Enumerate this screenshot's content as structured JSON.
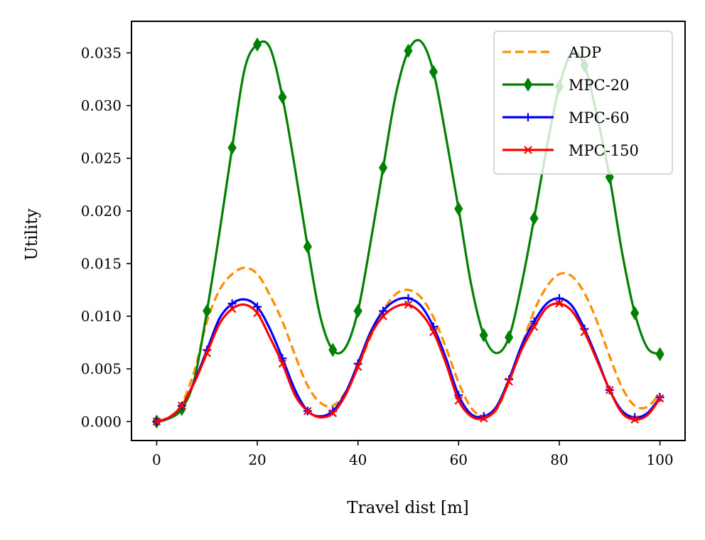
{
  "chart_data": {
    "type": "line",
    "title": "",
    "xlabel": "Travel dist [m]",
    "ylabel": "Utility",
    "xlim": [
      -5,
      105
    ],
    "ylim": [
      -0.0018,
      0.038
    ],
    "xticks": [
      0,
      20,
      40,
      60,
      80,
      100
    ],
    "xtick_labels": [
      "0",
      "20",
      "40",
      "60",
      "80",
      "100"
    ],
    "yticks": [
      0.0,
      0.005,
      0.01,
      0.015,
      0.02,
      0.025,
      0.03,
      0.035
    ],
    "ytick_labels": [
      "0.000",
      "0.005",
      "0.010",
      "0.015",
      "0.020",
      "0.025",
      "0.030",
      "0.035"
    ],
    "grid": false,
    "legend_position": "top-right",
    "series": [
      {
        "name": "ADP",
        "color": "#ff8c00",
        "style": "dashed",
        "marker": "none",
        "x": [
          0,
          2.5,
          5,
          7.5,
          10,
          12.5,
          15,
          17.5,
          20,
          22.5,
          25,
          27.5,
          30,
          32.5,
          35,
          37.5,
          40,
          42.5,
          45,
          47.5,
          50,
          52.5,
          55,
          57.5,
          60,
          62.5,
          65,
          67.5,
          70,
          72.5,
          75,
          77.5,
          80,
          82.5,
          85,
          87.5,
          90,
          92.5,
          95,
          97.5,
          100
        ],
        "y": [
          0.0,
          0.0003,
          0.0017,
          0.0048,
          0.0095,
          0.0125,
          0.014,
          0.0146,
          0.014,
          0.012,
          0.0095,
          0.0063,
          0.0034,
          0.0018,
          0.0015,
          0.0028,
          0.0052,
          0.008,
          0.0105,
          0.0121,
          0.0125,
          0.0118,
          0.0099,
          0.007,
          0.0037,
          0.0013,
          0.0005,
          0.0011,
          0.0038,
          0.0072,
          0.0105,
          0.0128,
          0.014,
          0.0138,
          0.0122,
          0.0095,
          0.0062,
          0.0032,
          0.0015,
          0.0014,
          0.0027
        ]
      },
      {
        "name": "MPC-20",
        "color": "#008000",
        "style": "solid",
        "marker": "diamond",
        "x": [
          0,
          2.5,
          5,
          7.5,
          10,
          12.5,
          15,
          17.5,
          20,
          22.5,
          25,
          27.5,
          30,
          32.5,
          35,
          37.5,
          40,
          42.5,
          45,
          47.5,
          50,
          52.5,
          55,
          57.5,
          60,
          62.5,
          65,
          67.5,
          70,
          72.5,
          75,
          77.5,
          80,
          82.5,
          85,
          87.5,
          90,
          92.5,
          95,
          97.5,
          100
        ],
        "y": [
          0.0,
          0.0003,
          0.0012,
          0.004,
          0.0105,
          0.018,
          0.026,
          0.0335,
          0.0358,
          0.0355,
          0.0308,
          0.024,
          0.0166,
          0.01,
          0.0068,
          0.007,
          0.0105,
          0.017,
          0.0241,
          0.031,
          0.0352,
          0.0361,
          0.0332,
          0.027,
          0.0202,
          0.013,
          0.0082,
          0.0065,
          0.008,
          0.013,
          0.0193,
          0.026,
          0.0318,
          0.035,
          0.0338,
          0.029,
          0.0232,
          0.016,
          0.0103,
          0.007,
          0.0064
        ]
      },
      {
        "name": "MPC-60",
        "color": "#0000ff",
        "style": "solid",
        "marker": "plus",
        "x": [
          0,
          2.5,
          5,
          7.5,
          10,
          12.5,
          15,
          17.5,
          20,
          22.5,
          25,
          27.5,
          30,
          32.5,
          35,
          37.5,
          40,
          42.5,
          45,
          47.5,
          50,
          52.5,
          55,
          57.5,
          60,
          62.5,
          65,
          67.5,
          70,
          72.5,
          75,
          77.5,
          80,
          82.5,
          85,
          87.5,
          90,
          92.5,
          95,
          97.5,
          100
        ],
        "y": [
          0.0,
          0.0004,
          0.0015,
          0.0038,
          0.0068,
          0.0098,
          0.0112,
          0.0116,
          0.0109,
          0.0088,
          0.006,
          0.003,
          0.001,
          0.0005,
          0.001,
          0.0027,
          0.0055,
          0.0085,
          0.0105,
          0.0115,
          0.0117,
          0.011,
          0.009,
          0.006,
          0.0025,
          0.0007,
          0.0005,
          0.0014,
          0.004,
          0.0072,
          0.0095,
          0.0112,
          0.0117,
          0.011,
          0.0088,
          0.006,
          0.003,
          0.001,
          0.0004,
          0.0008,
          0.0023
        ]
      },
      {
        "name": "MPC-150",
        "color": "#ff0000",
        "style": "solid",
        "marker": "x",
        "x": [
          0,
          2.5,
          5,
          7.5,
          10,
          12.5,
          15,
          17.5,
          20,
          22.5,
          25,
          27.5,
          30,
          32.5,
          35,
          37.5,
          40,
          42.5,
          45,
          47.5,
          50,
          52.5,
          55,
          57.5,
          60,
          62.5,
          65,
          67.5,
          70,
          72.5,
          75,
          77.5,
          80,
          82.5,
          85,
          87.5,
          90,
          92.5,
          95,
          97.5,
          100
        ],
        "y": [
          0.0,
          0.0004,
          0.0015,
          0.0037,
          0.0065,
          0.0093,
          0.0107,
          0.0111,
          0.0103,
          0.008,
          0.0055,
          0.0025,
          0.001,
          0.0004,
          0.0008,
          0.0025,
          0.0052,
          0.0082,
          0.01,
          0.0109,
          0.0111,
          0.0103,
          0.0085,
          0.0055,
          0.002,
          0.0005,
          0.0003,
          0.0012,
          0.0038,
          0.0068,
          0.009,
          0.0108,
          0.0112,
          0.0105,
          0.0085,
          0.0058,
          0.003,
          0.0008,
          0.0002,
          0.0006,
          0.0022
        ]
      }
    ]
  }
}
